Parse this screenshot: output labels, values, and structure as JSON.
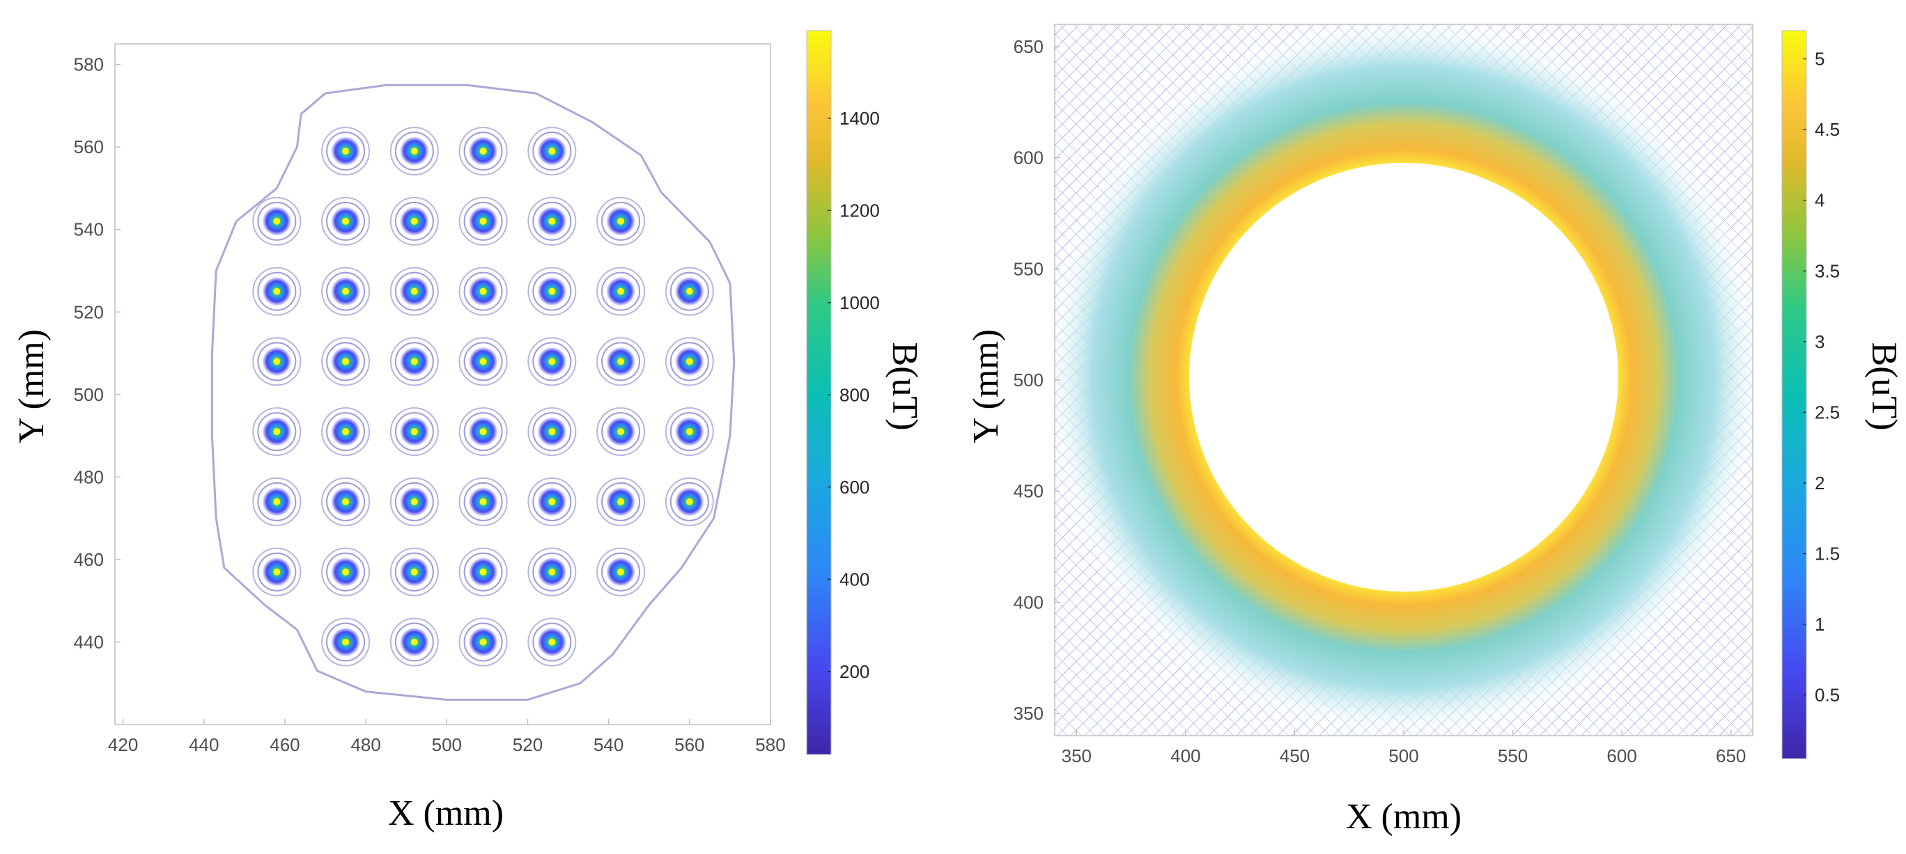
{
  "chart_data": [
    {
      "type": "contour",
      "title": "",
      "xlabel": "X (mm)",
      "ylabel": "Y (mm)",
      "xlim": [
        418,
        580
      ],
      "ylim": [
        420,
        585
      ],
      "xticks": [
        420,
        440,
        460,
        480,
        500,
        520,
        540,
        560,
        580
      ],
      "yticks": [
        440,
        460,
        480,
        500,
        520,
        540,
        560,
        580
      ],
      "colorbar": {
        "label": "B(uT)",
        "range": [
          20,
          1590
        ],
        "ticks": [
          200,
          400,
          600,
          800,
          1000,
          1200,
          1400
        ]
      },
      "description_points": "Magnet source positions (mm), rows listed as [y, [x...]]",
      "sources": [
        [
          559,
          [
            475,
            492,
            509,
            526
          ]
        ],
        [
          542,
          [
            458,
            475,
            492,
            509,
            526,
            543
          ]
        ],
        [
          525,
          [
            458,
            475,
            492,
            509,
            526,
            543,
            560
          ]
        ],
        [
          508,
          [
            458,
            475,
            492,
            509,
            526,
            543,
            560
          ]
        ],
        [
          491,
          [
            458,
            475,
            492,
            509,
            526,
            543,
            560
          ]
        ],
        [
          474,
          [
            458,
            475,
            492,
            509,
            526,
            543,
            560
          ]
        ],
        [
          457,
          [
            458,
            475,
            492,
            509,
            526,
            543
          ]
        ],
        [
          440,
          [
            475,
            492,
            509,
            526
          ]
        ]
      ]
    },
    {
      "type": "contour",
      "title": "",
      "xlabel": "X (mm)",
      "ylabel": "Y (mm)",
      "xlim": [
        340,
        660
      ],
      "ylim": [
        340,
        660
      ],
      "xticks": [
        350,
        400,
        450,
        500,
        550,
        600,
        650
      ],
      "yticks": [
        350,
        400,
        450,
        500,
        550,
        600,
        650
      ],
      "colorbar": {
        "label": "B(uT)",
        "range": [
          0.05,
          5.2
        ],
        "ticks": [
          0.5,
          1,
          1.5,
          2,
          2.5,
          3,
          3.5,
          4,
          4.5,
          5
        ]
      },
      "ring": {
        "center": [
          500,
          500
        ],
        "inner_radius": 100,
        "peak_value": 5.2
      }
    }
  ]
}
